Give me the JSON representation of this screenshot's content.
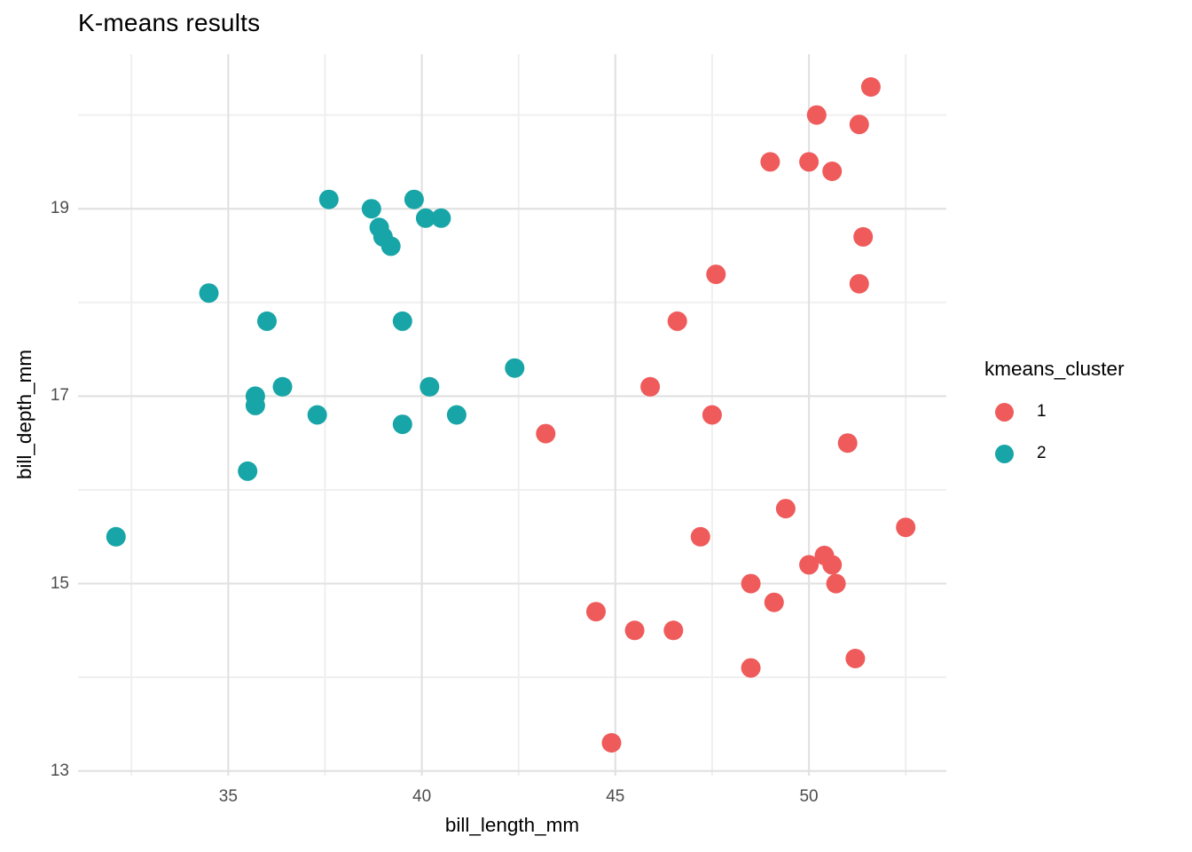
{
  "title": "K-means results",
  "chart_data": {
    "type": "scatter",
    "title": "K-means results",
    "xlabel": "bill_length_mm",
    "ylabel": "bill_depth_mm",
    "x_range": [
      31.12,
      53.55
    ],
    "y_range": [
      12.95,
      20.65
    ],
    "x_major_ticks": [
      35,
      40,
      45,
      50
    ],
    "x_minor_ticks": [
      32.5,
      37.5,
      42.5,
      47.5,
      52.5
    ],
    "y_major_ticks": [
      13,
      15,
      17,
      19
    ],
    "y_minor_ticks": [
      14,
      16,
      18,
      20
    ],
    "grid": true,
    "legend": {
      "title": "kmeans_cluster",
      "position": "right"
    },
    "series": [
      {
        "name": "1",
        "color": "#EF5B5B",
        "points": [
          [
            43.2,
            16.6
          ],
          [
            44.5,
            14.7
          ],
          [
            44.9,
            13.3
          ],
          [
            45.5,
            14.5
          ],
          [
            45.9,
            17.1
          ],
          [
            46.5,
            14.5
          ],
          [
            46.6,
            17.8
          ],
          [
            47.2,
            15.5
          ],
          [
            47.5,
            16.8
          ],
          [
            47.6,
            18.3
          ],
          [
            48.5,
            15.0
          ],
          [
            48.5,
            14.1
          ],
          [
            49.0,
            19.5
          ],
          [
            49.1,
            14.8
          ],
          [
            49.4,
            15.8
          ],
          [
            50.0,
            19.5
          ],
          [
            50.0,
            15.2
          ],
          [
            50.2,
            20.0
          ],
          [
            50.4,
            15.3
          ],
          [
            50.6,
            19.4
          ],
          [
            50.6,
            15.2
          ],
          [
            50.7,
            15.0
          ],
          [
            51.0,
            16.5
          ],
          [
            51.2,
            14.2
          ],
          [
            51.3,
            19.9
          ],
          [
            51.3,
            18.2
          ],
          [
            51.4,
            18.7
          ],
          [
            51.6,
            20.3
          ],
          [
            52.5,
            15.6
          ]
        ]
      },
      {
        "name": "2",
        "color": "#18A5A7",
        "points": [
          [
            32.1,
            15.5
          ],
          [
            34.5,
            18.1
          ],
          [
            35.5,
            16.2
          ],
          [
            35.7,
            17.0
          ],
          [
            35.7,
            16.9
          ],
          [
            36.0,
            17.8
          ],
          [
            36.4,
            17.1
          ],
          [
            37.3,
            16.8
          ],
          [
            37.6,
            19.1
          ],
          [
            38.7,
            19.0
          ],
          [
            38.9,
            18.8
          ],
          [
            39.0,
            18.7
          ],
          [
            39.2,
            18.6
          ],
          [
            39.5,
            17.8
          ],
          [
            39.5,
            16.7
          ],
          [
            39.8,
            19.1
          ],
          [
            40.1,
            18.9
          ],
          [
            40.2,
            17.1
          ],
          [
            40.5,
            18.9
          ],
          [
            40.9,
            16.8
          ],
          [
            42.4,
            17.3
          ]
        ]
      }
    ]
  },
  "colors": {
    "background": "#FFFFFF",
    "grid_major": "#E2E2E2",
    "grid_minor": "#EFEFEF",
    "tick_label": "#4D4D4D",
    "text": "#000000",
    "cluster_1": "#EF5B5B",
    "cluster_2": "#18A5A7"
  }
}
